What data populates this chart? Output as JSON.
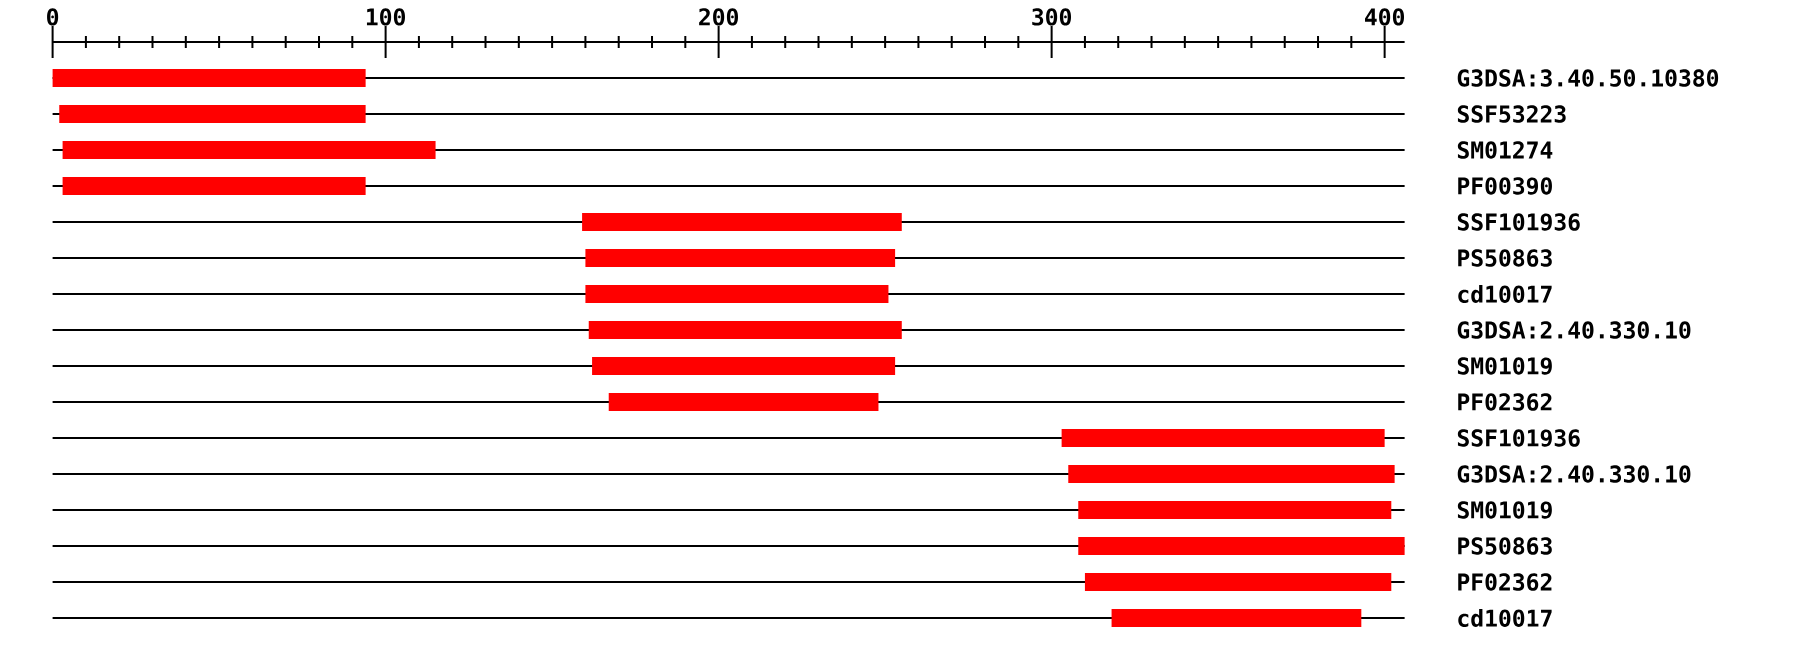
{
  "chart_data": {
    "type": "bar",
    "orientation": "horizontal",
    "color": "#ff0000",
    "grid": "y",
    "categories": [
      "G3DSA:3.40.50.10380",
      "SSF53223",
      "SM01274",
      "PF00390",
      "SSF101936",
      "PS50863",
      "cd10017",
      "G3DSA:2.40.330.10",
      "SM01019",
      "PF02362",
      "SSF101936",
      "G3DSA:2.40.330.10",
      "SM01019",
      "PS50863",
      "PF02362",
      "cd10017"
    ],
    "base": [
      0,
      2,
      3,
      3,
      159,
      160,
      160,
      161,
      162,
      167,
      303,
      305,
      308,
      308,
      310,
      318
    ],
    "values": [
      94,
      92,
      112,
      91,
      96,
      93,
      91,
      94,
      91,
      81,
      97,
      98,
      94,
      98,
      92,
      75
    ],
    "xlim": [
      0,
      406
    ],
    "xticks": [
      0,
      {
        "value": 10,
        "label": null
      },
      {
        "value": 20,
        "label": null
      },
      {
        "value": 30,
        "label": null
      },
      {
        "value": 40,
        "label": null
      },
      {
        "value": 50,
        "label": null
      },
      {
        "value": 60,
        "label": null
      },
      {
        "value": 70,
        "label": null
      },
      {
        "value": 80,
        "label": null
      },
      {
        "value": 90,
        "label": null
      },
      100,
      {
        "value": 110,
        "label": null
      },
      {
        "value": 120,
        "label": null
      },
      {
        "value": 130,
        "label": null
      },
      {
        "value": 140,
        "label": null
      },
      {
        "value": 150,
        "label": null
      },
      {
        "value": 160,
        "label": null
      },
      {
        "value": 170,
        "label": null
      },
      {
        "value": 180,
        "label": null
      },
      {
        "value": 190,
        "label": null
      },
      200,
      {
        "value": 210,
        "label": null
      },
      {
        "value": 220,
        "label": null
      },
      {
        "value": 230,
        "label": null
      },
      {
        "value": 240,
        "label": null
      },
      {
        "value": 250,
        "label": null
      },
      {
        "value": 260,
        "label": null
      },
      {
        "value": 270,
        "label": null
      },
      {
        "value": 280,
        "label": null
      },
      {
        "value": 290,
        "label": null
      },
      300,
      {
        "value": 310,
        "label": null
      },
      {
        "value": 320,
        "label": null
      },
      {
        "value": 330,
        "label": null
      },
      {
        "value": 340,
        "label": null
      },
      {
        "value": 350,
        "label": null
      },
      {
        "value": 360,
        "label": null
      },
      {
        "value": 370,
        "label": null
      },
      {
        "value": 380,
        "label": null
      },
      {
        "value": 390,
        "label": null
      },
      400
    ]
  }
}
